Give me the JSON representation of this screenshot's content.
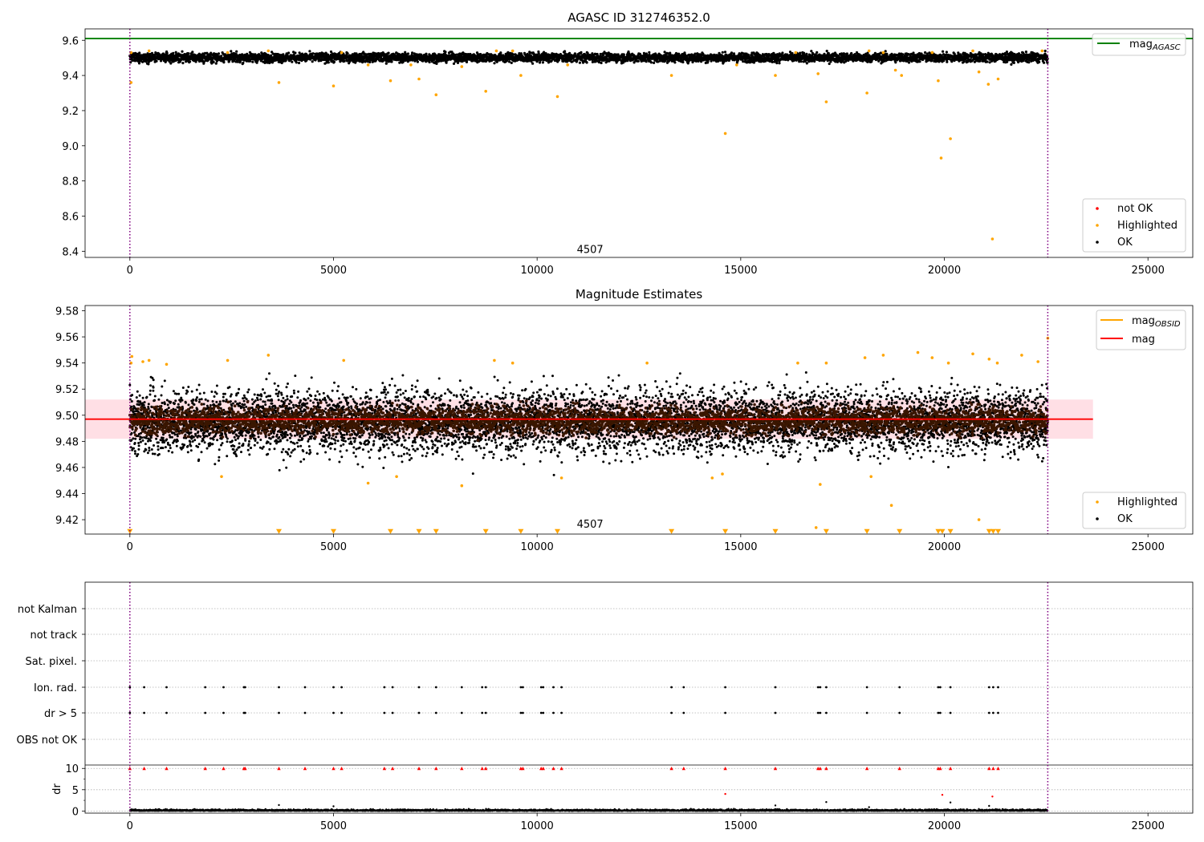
{
  "figure": {
    "colors": {
      "green": "#008000",
      "orange": "#ffa500",
      "red": "#ff0000",
      "black": "#000000",
      "purple": "#800080",
      "band": "#ffc0cb",
      "brown": "#3a1600"
    }
  },
  "chart_data": [
    {
      "type": "scatter",
      "title": "AGASC ID 312746352.0",
      "xlim": [
        -1100,
        26100
      ],
      "ylim": [
        8.365,
        9.665
      ],
      "xticks": [
        0,
        5000,
        10000,
        15000,
        20000,
        25000
      ],
      "xtick_labels": [
        "0",
        "5000",
        "10000",
        "15000",
        "20000",
        "25000"
      ],
      "yticks": [
        8.4,
        8.6,
        8.8,
        9.0,
        9.2,
        9.4,
        9.6
      ],
      "ytick_labels": [
        "8.4",
        "8.6",
        "8.8",
        "9.0",
        "9.2",
        "9.4",
        "9.6"
      ],
      "hline": {
        "label": "mag_AGASC",
        "legend_text": "mag",
        "legend_subscript": "AGASC",
        "y": 9.61,
        "color": "#008000"
      },
      "vlines": [
        0,
        22540
      ],
      "annotation": {
        "text": "4507",
        "x": 11300,
        "y": 8.39
      },
      "legend_upper": "top-right",
      "legend_lower": "bottom-right",
      "series": [
        {
          "name": "not OK",
          "color": "#ff0000",
          "points": []
        },
        {
          "name": "Highlighted",
          "color": "#ffa500",
          "points": [
            [
              30,
              9.53
            ],
            [
              30,
              9.36
            ],
            [
              470,
              9.54
            ],
            [
              2400,
              9.53
            ],
            [
              3400,
              9.54
            ],
            [
              3660,
              9.36
            ],
            [
              5000,
              9.34
            ],
            [
              5200,
              9.53
            ],
            [
              5850,
              9.46
            ],
            [
              6400,
              9.37
            ],
            [
              6900,
              9.46
            ],
            [
              7100,
              9.38
            ],
            [
              7520,
              9.29
            ],
            [
              8150,
              9.45
            ],
            [
              8740,
              9.31
            ],
            [
              9000,
              9.54
            ],
            [
              9400,
              9.54
            ],
            [
              9600,
              9.4
            ],
            [
              10500,
              9.28
            ],
            [
              10750,
              9.46
            ],
            [
              13300,
              9.4
            ],
            [
              14620,
              9.07
            ],
            [
              14900,
              9.46
            ],
            [
              15850,
              9.4
            ],
            [
              16350,
              9.53
            ],
            [
              16900,
              9.41
            ],
            [
              17100,
              9.25
            ],
            [
              18100,
              9.3
            ],
            [
              18150,
              9.54
            ],
            [
              18500,
              9.53
            ],
            [
              18800,
              9.43
            ],
            [
              18950,
              9.4
            ],
            [
              19700,
              9.53
            ],
            [
              19850,
              9.37
            ],
            [
              19920,
              8.93
            ],
            [
              20150,
              9.04
            ],
            [
              20700,
              9.54
            ],
            [
              20850,
              9.42
            ],
            [
              21080,
              9.35
            ],
            [
              21180,
              8.47
            ],
            [
              21320,
              9.38
            ],
            [
              22400,
              9.54
            ]
          ]
        },
        {
          "name": "OK",
          "color": "#000000",
          "band_y": [
            9.472,
            9.532
          ]
        }
      ]
    },
    {
      "type": "scatter",
      "title": "Magnitude Estimates",
      "xlim": [
        -1100,
        26100
      ],
      "ylim": [
        9.409,
        9.584
      ],
      "xticks": [
        0,
        5000,
        10000,
        15000,
        20000,
        25000
      ],
      "xtick_labels": [
        "0",
        "5000",
        "10000",
        "15000",
        "20000",
        "25000"
      ],
      "yticks": [
        9.42,
        9.44,
        9.46,
        9.48,
        9.5,
        9.52,
        9.54,
        9.56,
        9.58
      ],
      "ytick_labels": [
        "9.42",
        "9.44",
        "9.46",
        "9.48",
        "9.50",
        "9.52",
        "9.54",
        "9.56",
        "9.58"
      ],
      "mag_line": {
        "label": "mag",
        "y": 9.497,
        "band": [
          9.482,
          9.512
        ],
        "x_range": [
          -1100,
          23650
        ],
        "color": "#ff0000"
      },
      "mag_obsid": {
        "legend_text": "mag",
        "legend_subscript": "OBSID",
        "color": "#ffa500"
      },
      "vlines": [
        0,
        22540
      ],
      "annotation": {
        "text": "4507",
        "x": 11300,
        "y": 9.414
      },
      "legend_upper": "top-right",
      "legend_lower": "bottom-right",
      "series": [
        {
          "name": "Highlighted",
          "color": "#ffa500",
          "points": [
            [
              30,
              9.54
            ],
            [
              50,
              9.545
            ],
            [
              320,
              9.541
            ],
            [
              470,
              9.542
            ],
            [
              900,
              9.539
            ],
            [
              2250,
              9.453
            ],
            [
              2400,
              9.542
            ],
            [
              3400,
              9.546
            ],
            [
              5250,
              9.542
            ],
            [
              5850,
              9.448
            ],
            [
              6550,
              9.453
            ],
            [
              8150,
              9.446
            ],
            [
              8950,
              9.542
            ],
            [
              9400,
              9.54
            ],
            [
              10600,
              9.452
            ],
            [
              12700,
              9.54
            ],
            [
              14300,
              9.452
            ],
            [
              14550,
              9.455
            ],
            [
              16400,
              9.54
            ],
            [
              16950,
              9.447
            ],
            [
              17100,
              9.54
            ],
            [
              18050,
              9.544
            ],
            [
              18200,
              9.453
            ],
            [
              18500,
              9.546
            ],
            [
              18700,
              9.431
            ],
            [
              19350,
              9.548
            ],
            [
              19700,
              9.544
            ],
            [
              20100,
              9.54
            ],
            [
              20700,
              9.547
            ],
            [
              20850,
              9.42
            ],
            [
              21100,
              9.543
            ],
            [
              21300,
              9.54
            ],
            [
              21900,
              9.546
            ],
            [
              22300,
              9.541
            ],
            [
              22540,
              9.559
            ],
            [
              16850,
              9.414
            ]
          ]
        },
        {
          "name": "OK",
          "color": "#000000",
          "band_y": [
            9.465,
            9.53
          ]
        },
        {
          "name": "OBSID markers",
          "color": "#ffa500",
          "marker": "triangle-down",
          "x": [
            0,
            3660,
            5000,
            6400,
            7100,
            7520,
            8740,
            9600,
            10500,
            13300,
            14620,
            15850,
            17100,
            18100,
            18900,
            19850,
            19950,
            20150,
            21100,
            21200,
            21320
          ],
          "y": 9.411
        }
      ]
    },
    {
      "type": "scatter",
      "title": "",
      "xlim": [
        -1100,
        26100
      ],
      "category_labels": [
        "not Kalman",
        "not track",
        "Sat. pixel.",
        "Ion. rad.",
        "dr > 5",
        "OBS not OK"
      ],
      "flag_x": [
        0,
        350,
        900,
        1850,
        2300,
        2800,
        2830,
        3660,
        4300,
        5000,
        5200,
        6250,
        6450,
        7100,
        7520,
        8150,
        8650,
        8740,
        9600,
        9650,
        10100,
        10150,
        10400,
        10600,
        13300,
        13600,
        14620,
        15850,
        16900,
        16950,
        17100,
        18100,
        18900,
        19850,
        19900,
        20150,
        21100,
        21200,
        21320
      ],
      "flag_rows": [
        "Ion. rad.",
        "dr > 5"
      ],
      "vlines": [
        0,
        22540
      ],
      "dr_panel": {
        "ylabel": "dr",
        "yticks": [
          0,
          5,
          10
        ],
        "ytick_labels": [
          "0",
          "5",
          "10"
        ],
        "ylim": [
          -0.5,
          10.8
        ],
        "capped_value": 10,
        "capped_color": "#ff0000",
        "outliers": [
          [
            14620,
            4.0
          ],
          [
            19950,
            3.8
          ],
          [
            21180,
            3.4
          ],
          [
            17100,
            2.1
          ],
          [
            20150,
            2.0
          ],
          [
            3660,
            1.4
          ],
          [
            15850,
            1.3
          ],
          [
            5000,
            1.1
          ],
          [
            21100,
            1.2
          ],
          [
            18150,
            0.9
          ]
        ]
      },
      "xticks": [
        0,
        5000,
        10000,
        15000,
        20000,
        25000
      ],
      "xtick_labels": [
        "0",
        "5000",
        "10000",
        "15000",
        "20000",
        "25000"
      ]
    }
  ]
}
